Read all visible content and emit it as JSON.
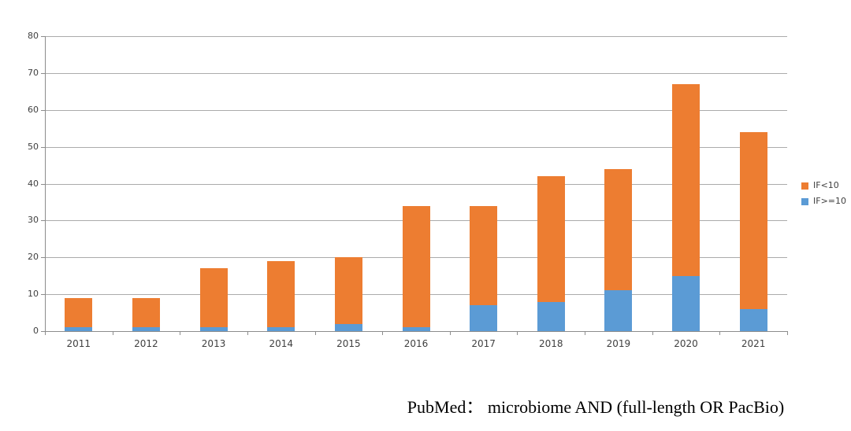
{
  "chart_data": {
    "type": "bar",
    "stacked": true,
    "title": "",
    "xlabel": "",
    "ylabel": "",
    "categories": [
      "2011",
      "2012",
      "2013",
      "2014",
      "2015",
      "2016",
      "2017",
      "2018",
      "2019",
      "2020",
      "2021"
    ],
    "series": [
      {
        "name": "IF>=10",
        "color": "#5B9BD5",
        "values": [
          1,
          1,
          1,
          1,
          2,
          1,
          7,
          8,
          11,
          15,
          6
        ]
      },
      {
        "name": "IF<10",
        "color": "#ED7D31",
        "values": [
          8,
          8,
          16,
          18,
          18,
          33,
          27,
          34,
          33,
          52,
          48
        ]
      }
    ],
    "totals": [
      9,
      9,
      17,
      19,
      20,
      34,
      34,
      42,
      44,
      67,
      54
    ],
    "ylim": [
      0,
      80
    ],
    "ytick_step": 10,
    "ytick_labels": [
      "0",
      "10",
      "20",
      "30",
      "40",
      "50",
      "60",
      "70",
      "80"
    ],
    "grid": true,
    "legend_position": "right",
    "stack_order_bottom_to_top": [
      "IF>=10",
      "IF<10"
    ]
  },
  "legend": {
    "items": [
      {
        "label": "IF<10",
        "color": "#ED7D31"
      },
      {
        "label": "IF>=10",
        "color": "#5B9BD5"
      }
    ]
  },
  "caption": "PubMed： microbiome AND (full-length OR PacBio)",
  "colors": {
    "bar_orange": "#ED7D31",
    "bar_blue": "#5B9BD5",
    "gridline": "#ABABAB",
    "axis": "#8C8C8C",
    "label": "#3F3F3F",
    "caption": "#000000",
    "background": "#FFFFFF"
  }
}
